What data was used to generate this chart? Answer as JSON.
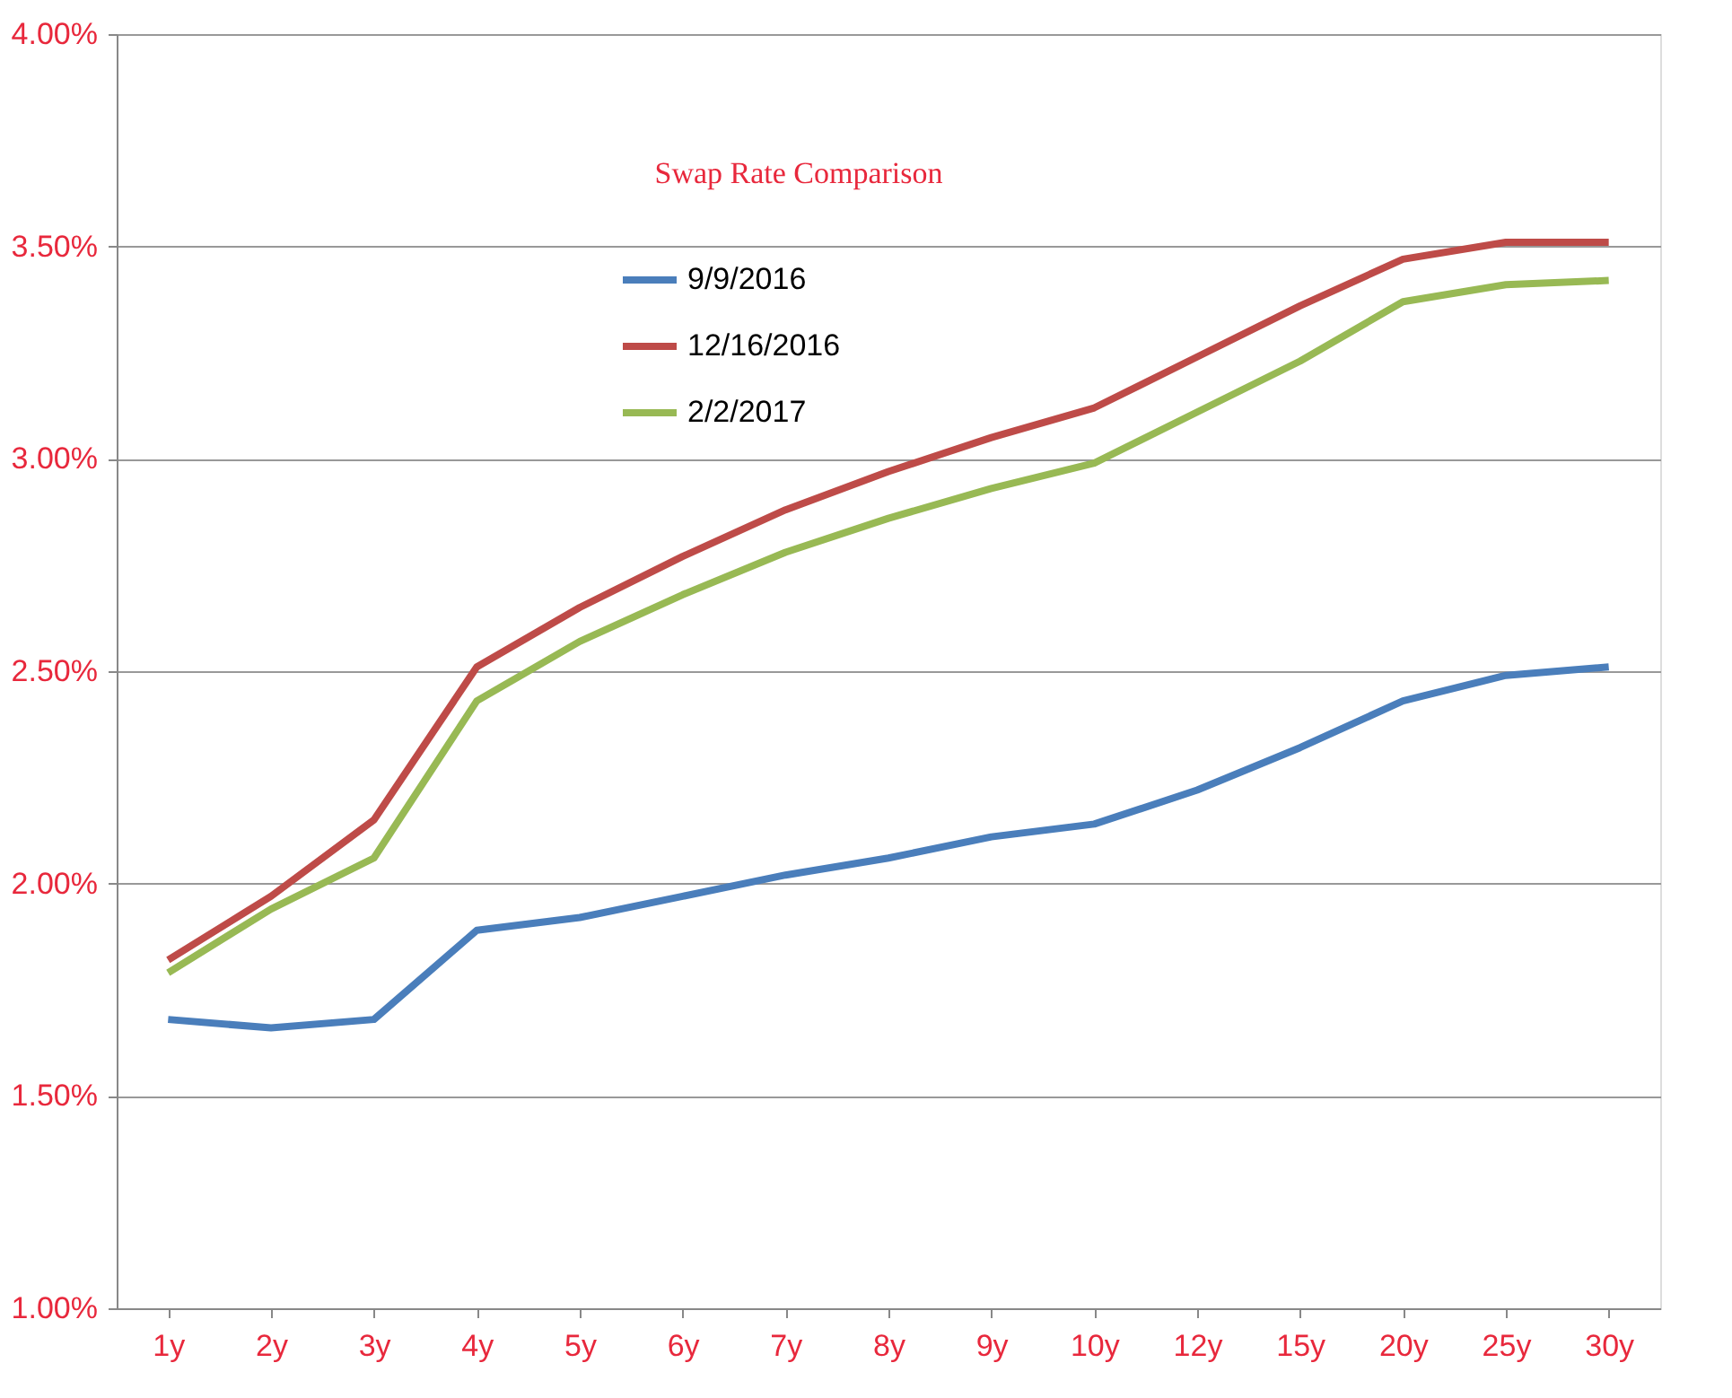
{
  "chart_data": {
    "type": "line",
    "title": "Swap Rate Comparison",
    "categories": [
      "1y",
      "2y",
      "3y",
      "4y",
      "5y",
      "6y",
      "7y",
      "8y",
      "9y",
      "10y",
      "12y",
      "15y",
      "20y",
      "25y",
      "30y"
    ],
    "series": [
      {
        "name": "9/9/2016",
        "color": "#4a7ebb",
        "values": [
          1.68,
          1.66,
          1.68,
          1.89,
          1.92,
          1.97,
          2.02,
          2.06,
          2.11,
          2.14,
          2.22,
          2.32,
          2.43,
          2.49,
          2.51
        ]
      },
      {
        "name": "12/16/2016",
        "color": "#be4b48",
        "values": [
          1.82,
          1.97,
          2.15,
          2.51,
          2.65,
          2.77,
          2.88,
          2.97,
          3.05,
          3.12,
          3.24,
          3.36,
          3.47,
          3.51,
          3.51
        ]
      },
      {
        "name": "2/2/2017",
        "color": "#98b954",
        "values": [
          1.79,
          1.94,
          2.06,
          2.43,
          2.57,
          2.68,
          2.78,
          2.86,
          2.93,
          2.99,
          3.11,
          3.23,
          3.37,
          3.41,
          3.42
        ]
      }
    ],
    "ylim": [
      1,
      4
    ],
    "yticks": [
      {
        "value": 1,
        "label": "1.00%"
      },
      {
        "value": 1.5,
        "label": "1.50%"
      },
      {
        "value": 2,
        "label": "2.00%"
      },
      {
        "value": 2.5,
        "label": "2.50%"
      },
      {
        "value": 3,
        "label": "3.00%"
      },
      {
        "value": 3.5,
        "label": "3.50%"
      },
      {
        "value": 4,
        "label": "4.00%"
      }
    ],
    "grid": "y",
    "legend": "top",
    "marker": "none",
    "line_style": "solid"
  }
}
